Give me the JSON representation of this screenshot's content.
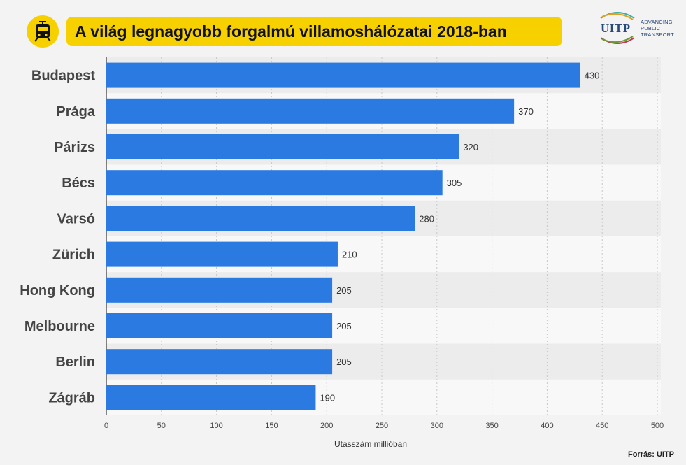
{
  "header": {
    "icon": "tram-icon",
    "title": "A világ legnagyobb forgalmú villamoshálózatai 2018-ban"
  },
  "logo": {
    "wordmark": "UITP",
    "tagline": [
      "ADVANCING",
      "PUBLIC",
      "TRANSPORT"
    ]
  },
  "source": "Forrás: UITP",
  "colors": {
    "bar": "#2a7ae2",
    "accent": "#f7d000",
    "background": "#f3f3f3"
  },
  "chart_data": {
    "type": "bar",
    "orientation": "horizontal",
    "categories": [
      "Budapest",
      "Prága",
      "Párizs",
      "Bécs",
      "Varsó",
      "Zürich",
      "Hong Kong",
      "Melbourne",
      "Berlin",
      "Zágráb"
    ],
    "values": [
      430,
      370,
      320,
      305,
      280,
      210,
      205,
      205,
      205,
      190
    ],
    "xlabel": "Utasszám millióban",
    "xlim": [
      0,
      500
    ],
    "xticks": [
      0,
      50,
      100,
      150,
      200,
      250,
      300,
      350,
      400,
      450,
      500
    ],
    "grid": "vertical dotted",
    "data_labels": true
  }
}
